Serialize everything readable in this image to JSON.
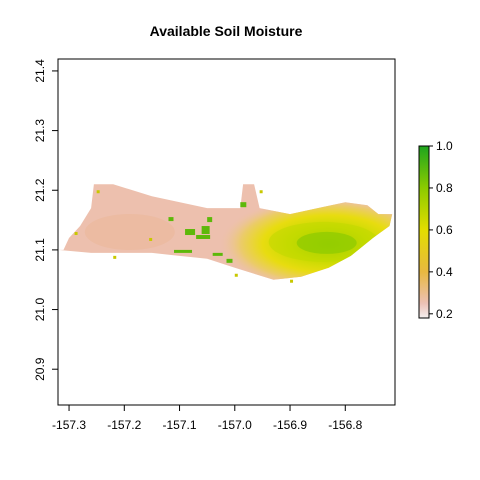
{
  "title": "Available Soil Moisture",
  "map": {
    "x_range": [
      -157.32,
      -156.71
    ],
    "y_range": [
      20.84,
      21.42
    ],
    "x_ticks": [
      "-157.3",
      "-157.2",
      "-157.1",
      "-157.0",
      "-156.9",
      "-156.8"
    ],
    "x_tick_values": [
      -157.3,
      -157.2,
      -157.1,
      -157.0,
      -156.9,
      -156.8
    ],
    "y_ticks": [
      "20.9",
      "21.0",
      "21.1",
      "21.2",
      "21.3",
      "21.4"
    ],
    "y_tick_values": [
      20.9,
      21.0,
      21.1,
      21.2,
      21.3,
      21.4
    ],
    "island_outline_lonlat": [
      [
        -157.31,
        21.1
      ],
      [
        -157.3,
        21.12
      ],
      [
        -157.28,
        21.14
      ],
      [
        -157.26,
        21.17
      ],
      [
        -157.255,
        21.21
      ],
      [
        -157.22,
        21.21
      ],
      [
        -157.15,
        21.19
      ],
      [
        -157.05,
        21.17
      ],
      [
        -156.99,
        21.17
      ],
      [
        -156.985,
        21.21
      ],
      [
        -156.965,
        21.21
      ],
      [
        -156.955,
        21.17
      ],
      [
        -156.9,
        21.16
      ],
      [
        -156.85,
        21.17
      ],
      [
        -156.8,
        21.18
      ],
      [
        -156.76,
        21.175
      ],
      [
        -156.74,
        21.16
      ],
      [
        -156.715,
        21.16
      ],
      [
        -156.72,
        21.14
      ],
      [
        -156.75,
        21.12
      ],
      [
        -156.79,
        21.09
      ],
      [
        -156.83,
        21.07
      ],
      [
        -156.88,
        21.055
      ],
      [
        -156.93,
        21.05
      ],
      [
        -157.0,
        21.07
      ],
      [
        -157.05,
        21.085
      ],
      [
        -157.1,
        21.09
      ],
      [
        -157.15,
        21.095
      ],
      [
        -157.2,
        21.095
      ],
      [
        -157.26,
        21.095
      ],
      [
        -157.32,
        21.1
      ]
    ],
    "moist_core": {
      "lon": -156.83,
      "lat": 21.11
    },
    "colors": {
      "dry": "#EDC0AE",
      "mid": "#E3DD00",
      "wet": "#8CCB00",
      "patch": "#5DB80A"
    }
  },
  "legend": {
    "min": 0.2,
    "max": 1.0,
    "tick_labels": [
      "1.0",
      "0.8",
      "0.6",
      "0.4",
      "0.2"
    ],
    "tick_values": [
      1.0,
      0.8,
      0.6,
      0.4,
      0.2
    ],
    "gradient": [
      {
        "v": 0.18,
        "color": "#F5F0F0"
      },
      {
        "v": 0.25,
        "color": "#ECC1B5"
      },
      {
        "v": 0.4,
        "color": "#E8B840"
      },
      {
        "v": 0.6,
        "color": "#E3DD00"
      },
      {
        "v": 0.8,
        "color": "#8CCB00"
      },
      {
        "v": 1.0,
        "color": "#1EA51E"
      }
    ]
  }
}
